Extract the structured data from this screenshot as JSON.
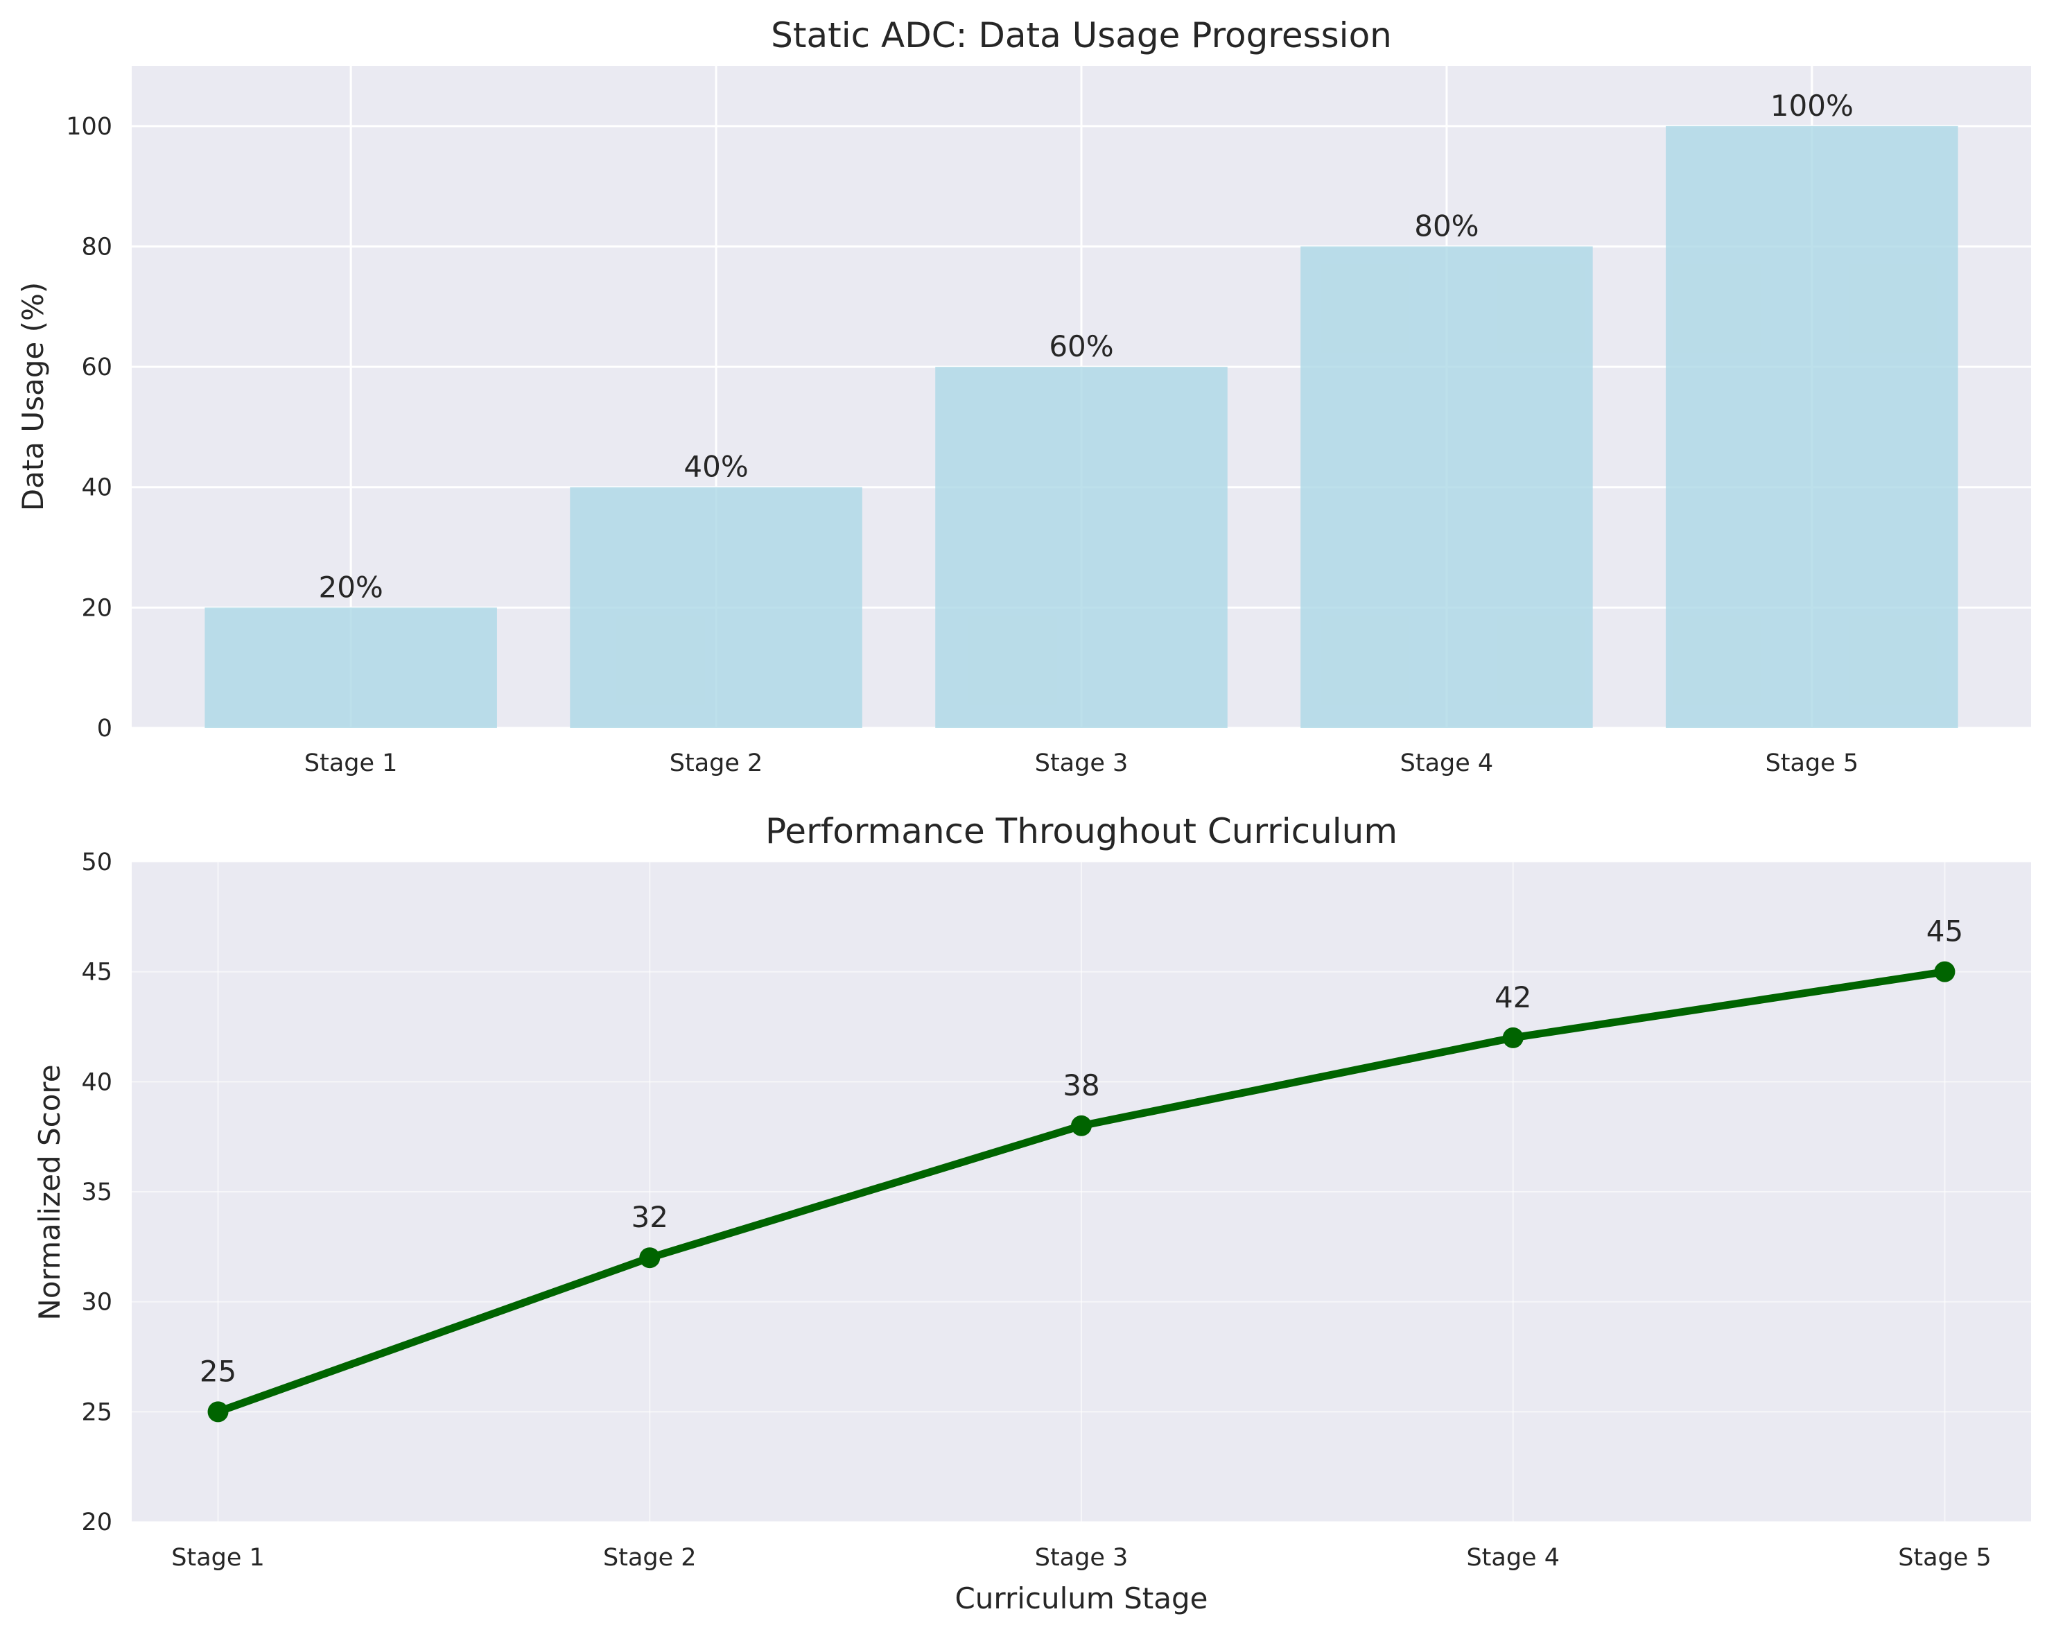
{
  "chart_data": [
    {
      "type": "bar",
      "title": "Static ADC: Data Usage Progression",
      "xlabel": "",
      "ylabel": "Data Usage (%)",
      "categories": [
        "Stage 1",
        "Stage 2",
        "Stage 3",
        "Stage 4",
        "Stage 5"
      ],
      "values": [
        20,
        40,
        60,
        80,
        100
      ],
      "data_labels": [
        "20%",
        "40%",
        "60%",
        "80%",
        "100%"
      ],
      "yticks": [
        0,
        20,
        40,
        60,
        80,
        100
      ],
      "ylim": [
        0,
        110
      ],
      "grid": true,
      "colors": {
        "bar": "#add8e6",
        "background": "#eaeaf2",
        "grid": "#ffffff"
      }
    },
    {
      "type": "line",
      "title": "Performance Throughout Curriculum",
      "xlabel": "Curriculum Stage",
      "ylabel": "Normalized Score",
      "categories": [
        "Stage 1",
        "Stage 2",
        "Stage 3",
        "Stage 4",
        "Stage 5"
      ],
      "values": [
        25,
        32,
        38,
        42,
        45
      ],
      "data_labels": [
        "25",
        "32",
        "38",
        "42",
        "45"
      ],
      "yticks": [
        20,
        25,
        30,
        35,
        40,
        45,
        50
      ],
      "ylim": [
        20,
        50
      ],
      "grid": true,
      "colors": {
        "line": "#006400",
        "background": "#eaeaf2",
        "grid": "#ffffff"
      }
    }
  ]
}
